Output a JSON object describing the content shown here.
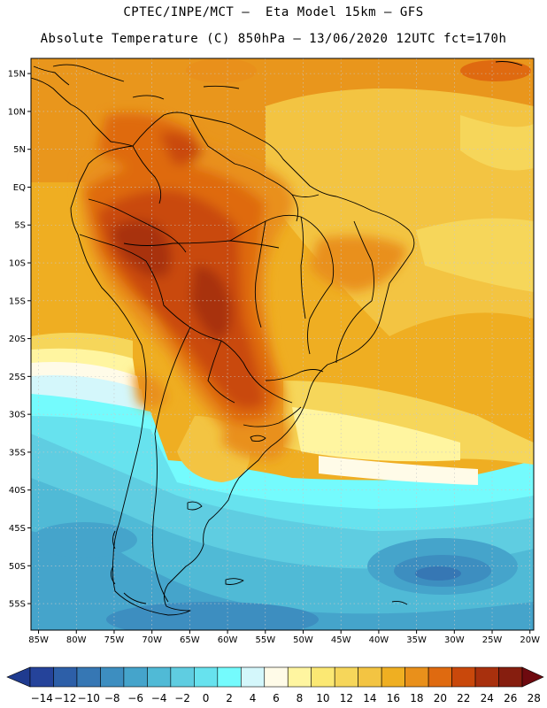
{
  "header": {
    "line1": "CPTEC/INPE/MCT –  Eta Model 15km – GFS",
    "line2": "Absolute Temperature (C) 850hPa – 13/06/2020 12UTC fct=170h"
  },
  "map": {
    "lon_range": [
      -86,
      -19.5
    ],
    "lat_range": [
      -58.5,
      17
    ],
    "x_ticks": [
      {
        "lon": -85,
        "label": "85W"
      },
      {
        "lon": -80,
        "label": "80W"
      },
      {
        "lon": -75,
        "label": "75W"
      },
      {
        "lon": -70,
        "label": "70W"
      },
      {
        "lon": -65,
        "label": "65W"
      },
      {
        "lon": -60,
        "label": "60W"
      },
      {
        "lon": -55,
        "label": "55W"
      },
      {
        "lon": -50,
        "label": "50W"
      },
      {
        "lon": -45,
        "label": "45W"
      },
      {
        "lon": -40,
        "label": "40W"
      },
      {
        "lon": -35,
        "label": "35W"
      },
      {
        "lon": -30,
        "label": "30W"
      },
      {
        "lon": -25,
        "label": "25W"
      },
      {
        "lon": -20,
        "label": "20W"
      }
    ],
    "y_ticks": [
      {
        "lat": 15,
        "label": "15N"
      },
      {
        "lat": 10,
        "label": "10N"
      },
      {
        "lat": 5,
        "label": "5N"
      },
      {
        "lat": 0,
        "label": "EQ"
      },
      {
        "lat": -5,
        "label": "5S"
      },
      {
        "lat": -10,
        "label": "10S"
      },
      {
        "lat": -15,
        "label": "15S"
      },
      {
        "lat": -20,
        "label": "20S"
      },
      {
        "lat": -25,
        "label": "25S"
      },
      {
        "lat": -30,
        "label": "30S"
      },
      {
        "lat": -35,
        "label": "35S"
      },
      {
        "lat": -40,
        "label": "40S"
      },
      {
        "lat": -45,
        "label": "45S"
      },
      {
        "lat": -50,
        "label": "50S"
      },
      {
        "lat": -55,
        "label": "55S"
      }
    ]
  },
  "colorbar": {
    "under_color": "#1f3b8f",
    "over_color": "#6e0a0f",
    "colors": [
      "#25439a",
      "#2d5fa8",
      "#3677b4",
      "#3d8ec0",
      "#45a4cb",
      "#50bad6",
      "#5fcde1",
      "#67e2ee",
      "#74fbfd",
      "#d4f7fb",
      "#fffbe8",
      "#fff5a0",
      "#fbe873",
      "#f6d65a",
      "#f3c442",
      "#efaf22",
      "#e9901b",
      "#df6a10",
      "#c9480b",
      "#a8300d",
      "#861e0f"
    ],
    "labels": [
      "-14",
      "-12",
      "-10",
      "-8",
      "-6",
      "-4",
      "-2",
      "0",
      "2",
      "4",
      "6",
      "8",
      "10",
      "12",
      "14",
      "16",
      "18",
      "20",
      "22",
      "24",
      "26",
      "28"
    ]
  }
}
